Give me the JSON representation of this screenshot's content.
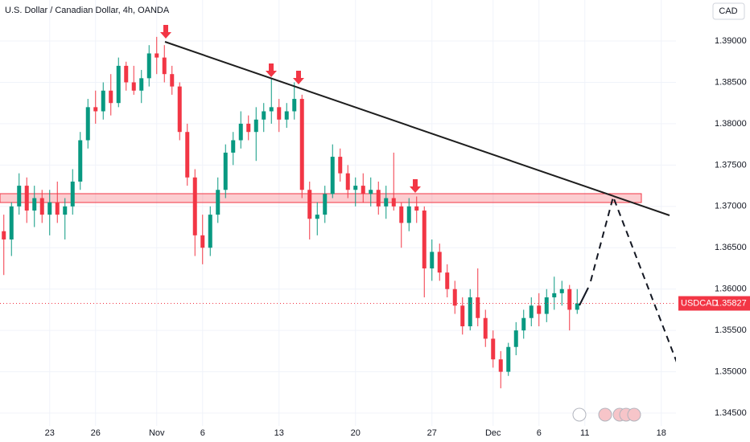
{
  "chart_data": {
    "type": "candlestick",
    "title": "U.S. Dollar / Canadian Dollar, 4h, OANDA",
    "currency": "CAD",
    "symbol": "USDCAD",
    "last_price": 1.35827,
    "up_color": "#089981",
    "down_color": "#f23645",
    "grid": true,
    "categories": [
      null,
      null,
      null,
      null,
      null,
      null,
      "23",
      null,
      null,
      null,
      null,
      null,
      "26",
      null,
      null,
      null,
      null,
      null,
      null,
      null,
      "Nov",
      null,
      null,
      null,
      null,
      null,
      "6",
      null,
      null,
      null,
      null,
      null,
      null,
      null,
      null,
      null,
      "13",
      null,
      null,
      null,
      null,
      null,
      null,
      null,
      null,
      null,
      "20",
      null,
      null,
      null,
      null,
      null,
      null,
      null,
      null,
      null,
      "27",
      null,
      null,
      null,
      null,
      null,
      null,
      null,
      "Dec",
      null,
      null,
      null,
      null,
      null,
      "6",
      null,
      null,
      null,
      null,
      null,
      "11",
      null,
      null,
      null,
      null,
      null,
      null,
      null,
      null,
      null,
      "18",
      null
    ],
    "open": [
      1.367,
      1.366,
      1.37,
      1.3725,
      1.3695,
      1.371,
      1.369,
      1.3705,
      1.369,
      1.37,
      1.373,
      1.378,
      1.382,
      1.3815,
      1.384,
      1.3825,
      1.387,
      1.385,
      1.384,
      1.3855,
      1.3885,
      1.388,
      1.386,
      1.3845,
      1.379,
      1.3735,
      1.3665,
      1.365,
      1.369,
      1.372,
      1.3765,
      1.378,
      1.38,
      1.379,
      1.3805,
      1.3815,
      1.382,
      1.3805,
      1.3815,
      1.383,
      1.372,
      1.3685,
      1.369,
      1.3715,
      1.376,
      1.374,
      1.372,
      1.3725,
      1.3715,
      1.372,
      1.37,
      1.371,
      1.37,
      1.368,
      1.37,
      1.3695,
      1.3625,
      1.3645,
      1.362,
      1.36,
      1.358,
      1.3555,
      1.359,
      1.3565,
      1.354,
      1.3515,
      1.35,
      1.353,
      1.355,
      1.3565,
      1.358,
      1.357,
      1.359,
      1.3595,
      1.36,
      1.3575,
      null,
      null,
      null,
      null,
      null,
      null,
      null,
      null,
      null,
      null,
      null,
      null
    ],
    "high": [
      1.369,
      1.3705,
      1.374,
      1.3735,
      1.3725,
      1.372,
      1.372,
      1.373,
      1.371,
      1.3745,
      1.379,
      1.383,
      1.384,
      1.385,
      1.386,
      1.388,
      1.3875,
      1.387,
      1.3865,
      1.3895,
      1.3905,
      1.3895,
      1.387,
      1.385,
      1.38,
      1.3745,
      1.369,
      1.37,
      1.3735,
      1.3775,
      1.379,
      1.3815,
      1.381,
      1.382,
      1.3825,
      1.3855,
      1.383,
      1.3825,
      1.385,
      1.3835,
      1.373,
      1.3705,
      1.3725,
      1.3775,
      1.377,
      1.375,
      1.3735,
      1.374,
      1.3735,
      1.373,
      1.3725,
      1.3765,
      1.3705,
      1.371,
      1.3712,
      1.37,
      1.366,
      1.3655,
      1.363,
      1.361,
      1.359,
      1.36,
      1.3625,
      1.3575,
      1.355,
      1.3525,
      1.3535,
      1.356,
      1.3575,
      1.359,
      1.3595,
      1.36,
      1.3615,
      1.361,
      1.3605,
      1.36,
      null,
      null,
      null,
      null,
      null,
      null,
      null,
      null,
      null,
      null,
      null,
      null
    ],
    "low": [
      1.3617,
      1.364,
      1.369,
      1.368,
      1.3675,
      1.368,
      1.3665,
      1.368,
      1.366,
      1.369,
      1.372,
      1.377,
      1.38,
      1.3805,
      1.381,
      1.382,
      1.384,
      1.3835,
      1.3825,
      1.3845,
      1.386,
      1.385,
      1.3835,
      1.378,
      1.3725,
      1.364,
      1.363,
      1.364,
      1.368,
      1.371,
      1.375,
      1.377,
      1.378,
      1.3755,
      1.379,
      1.38,
      1.379,
      1.3795,
      1.3805,
      1.371,
      1.366,
      1.3665,
      1.368,
      1.371,
      1.373,
      1.371,
      1.37,
      1.3705,
      1.37,
      1.369,
      1.3685,
      1.3695,
      1.365,
      1.367,
      1.368,
      1.359,
      1.361,
      1.361,
      1.359,
      1.357,
      1.3545,
      1.355,
      1.3555,
      1.353,
      1.3505,
      1.348,
      1.3495,
      1.352,
      1.354,
      1.3555,
      1.3555,
      1.356,
      1.3575,
      1.358,
      1.355,
      1.357,
      null,
      null,
      null,
      null,
      null,
      null,
      null,
      null,
      null,
      null,
      null,
      null
    ],
    "close": [
      1.366,
      1.37,
      1.3725,
      1.3695,
      1.371,
      1.369,
      1.3705,
      1.369,
      1.37,
      1.373,
      1.378,
      1.382,
      1.3815,
      1.384,
      1.3825,
      1.387,
      1.385,
      1.384,
      1.3855,
      1.3885,
      1.388,
      1.386,
      1.3845,
      1.379,
      1.3735,
      1.3665,
      1.365,
      1.369,
      1.372,
      1.3765,
      1.378,
      1.38,
      1.379,
      1.3805,
      1.3815,
      1.382,
      1.3805,
      1.3815,
      1.383,
      1.372,
      1.3685,
      1.369,
      1.3715,
      1.376,
      1.374,
      1.372,
      1.3725,
      1.3715,
      1.372,
      1.37,
      1.371,
      1.37,
      1.368,
      1.37,
      1.3695,
      1.3625,
      1.3645,
      1.362,
      1.36,
      1.358,
      1.3555,
      1.359,
      1.3565,
      1.354,
      1.3515,
      1.35,
      1.353,
      1.355,
      1.3565,
      1.358,
      1.357,
      1.359,
      1.3595,
      1.36,
      1.3575,
      1.35827,
      null,
      null,
      null,
      null,
      null,
      null,
      null,
      null,
      null,
      null,
      null,
      null
    ],
    "ylim": [
      1.34345,
      1.39496
    ],
    "yticks": [
      {
        "value": 1.345,
        "label": "1.34500"
      },
      {
        "value": 1.35,
        "label": "1.35000"
      },
      {
        "value": 1.355,
        "label": "1.35500"
      },
      {
        "value": 1.36,
        "label": "1.36000"
      },
      {
        "value": 1.365,
        "label": "1.36500"
      },
      {
        "value": 1.37,
        "label": "1.37000"
      },
      {
        "value": 1.375,
        "label": "1.37500"
      },
      {
        "value": 1.38,
        "label": "1.38000"
      },
      {
        "value": 1.385,
        "label": "1.38500"
      },
      {
        "value": 1.39,
        "label": "1.39000"
      }
    ]
  }
}
